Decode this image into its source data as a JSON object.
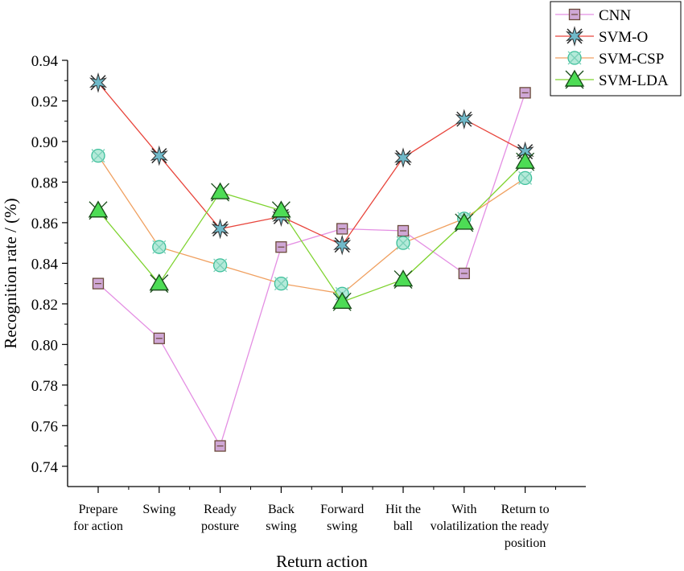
{
  "chart_data": {
    "type": "line",
    "xlabel": "Return action",
    "ylabel": "Recognition rate / (%)",
    "ylim": [
      0.73,
      0.94
    ],
    "yticks": [
      "0.74",
      "0.76",
      "0.78",
      "0.80",
      "0.82",
      "0.84",
      "0.86",
      "0.88",
      "0.90",
      "0.92",
      "0.94"
    ],
    "categories": [
      [
        "Prepare",
        "for action"
      ],
      [
        "Swing"
      ],
      [
        "Ready",
        "posture"
      ],
      [
        "Back",
        "swing"
      ],
      [
        "Forward",
        "swing"
      ],
      [
        "Hit the",
        "ball"
      ],
      [
        "With",
        "volatilization"
      ],
      [
        "Return to",
        "the ready",
        "position"
      ]
    ],
    "legend_position": "top-right",
    "series": [
      {
        "name": "CNN",
        "color": "#e48fe3",
        "marker": "square",
        "marker_fill": "#cfa7d6",
        "values": [
          0.83,
          0.803,
          0.75,
          0.848,
          0.857,
          0.856,
          0.835,
          0.924
        ]
      },
      {
        "name": "SVM-O",
        "color": "#e8453c",
        "marker": "star",
        "marker_fill": "#6fb9c9",
        "values": [
          0.929,
          0.893,
          0.857,
          0.863,
          0.849,
          0.892,
          0.911,
          0.895
        ]
      },
      {
        "name": "SVM-CSP",
        "color": "#f0a060",
        "marker": "circle-x",
        "marker_fill": "#b4ead9",
        "values": [
          0.893,
          0.848,
          0.839,
          0.83,
          0.825,
          0.85,
          0.862,
          0.882
        ]
      },
      {
        "name": "SVM-LDA",
        "color": "#7ed32f",
        "marker": "triangle",
        "marker_fill": "#4ddc55",
        "values": [
          0.866,
          0.83,
          0.875,
          0.866,
          0.821,
          0.832,
          0.86,
          0.89
        ]
      }
    ]
  }
}
